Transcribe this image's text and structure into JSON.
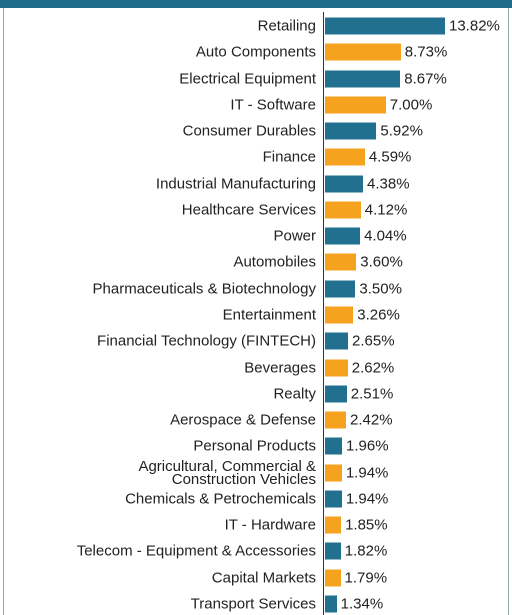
{
  "chart_data": {
    "type": "bar",
    "orientation": "horizontal",
    "categories": [
      "Retailing",
      "Auto Components",
      "Electrical Equipment",
      "IT - Software",
      "Consumer Durables",
      "Finance",
      "Industrial Manufacturing",
      "Healthcare Services",
      "Power",
      "Automobiles",
      "Pharmaceuticals & Biotechnology",
      "Entertainment",
      "Financial Technology (FINTECH)",
      "Beverages",
      "Realty",
      "Aerospace & Defense",
      "Personal Products",
      "Agricultural, Commercial &\nConstruction Vehicles",
      "Chemicals & Petrochemicals",
      "IT - Hardware",
      "Telecom - Equipment & Accessories",
      "Capital Markets",
      "Transport Services"
    ],
    "values": [
      13.82,
      8.73,
      8.67,
      7.0,
      5.92,
      4.59,
      4.38,
      4.12,
      4.04,
      3.6,
      3.5,
      3.26,
      2.65,
      2.62,
      2.51,
      2.42,
      1.96,
      1.94,
      1.94,
      1.85,
      1.82,
      1.79,
      1.34
    ],
    "value_labels": [
      "13.82%",
      "8.73%",
      "8.67%",
      "7.00%",
      "5.92%",
      "4.59%",
      "4.38%",
      "4.12%",
      "4.04%",
      "3.60%",
      "3.50%",
      "3.26%",
      "2.65%",
      "2.62%",
      "2.51%",
      "2.42%",
      "1.96%",
      "1.94%",
      "1.94%",
      "1.85%",
      "1.82%",
      "1.79%",
      "1.34%"
    ],
    "colors": [
      "#21708f",
      "#f5a21f",
      "#21708f",
      "#f5a21f",
      "#21708f",
      "#f5a21f",
      "#21708f",
      "#f5a21f",
      "#21708f",
      "#f5a21f",
      "#21708f",
      "#f5a21f",
      "#21708f",
      "#f5a21f",
      "#21708f",
      "#f5a21f",
      "#21708f",
      "#f5a21f",
      "#21708f",
      "#f5a21f",
      "#21708f",
      "#f5a21f",
      "#21708f"
    ]
  }
}
